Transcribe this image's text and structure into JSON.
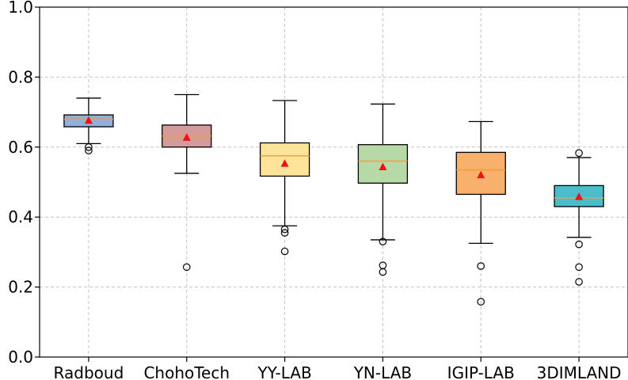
{
  "chart_data": {
    "type": "box",
    "title": "",
    "xlabel": "",
    "ylabel": "",
    "ylim": [
      0.0,
      1.0
    ],
    "yticks": [
      "0.0",
      "0.2",
      "0.4",
      "0.6",
      "0.8",
      "1.0"
    ],
    "grid": true,
    "categories": [
      "Radboud",
      "ChohoTech",
      "YY-LAB",
      "YN-LAB",
      "IGIP-LAB",
      "3DIMLAND"
    ],
    "colors": [
      "#92afd6",
      "#d49b9b",
      "#fde49a",
      "#b7d9a8",
      "#f8b06d",
      "#4bbcca"
    ],
    "median_color": "#f39c3c",
    "mean_color": "#ee1111",
    "boxes": [
      {
        "name": "Radboud",
        "whislo": 0.61,
        "q1": 0.658,
        "med": 0.68,
        "q3": 0.692,
        "whishi": 0.74,
        "mean": 0.676,
        "fliers": [
          0.6,
          0.59
        ]
      },
      {
        "name": "ChohoTech",
        "whislo": 0.525,
        "q1": 0.6,
        "med": 0.632,
        "q3": 0.663,
        "whishi": 0.75,
        "mean": 0.627,
        "fliers": [
          0.257
        ]
      },
      {
        "name": "YY-LAB",
        "whislo": 0.375,
        "q1": 0.517,
        "med": 0.575,
        "q3": 0.612,
        "whishi": 0.733,
        "mean": 0.553,
        "fliers": [
          0.365,
          0.355,
          0.302
        ]
      },
      {
        "name": "YN-LAB",
        "whislo": 0.335,
        "q1": 0.497,
        "med": 0.56,
        "q3": 0.607,
        "whishi": 0.723,
        "mean": 0.543,
        "fliers": [
          0.33,
          0.262,
          0.243
        ]
      },
      {
        "name": "IGIP-LAB",
        "whislo": 0.325,
        "q1": 0.465,
        "med": 0.535,
        "q3": 0.585,
        "whishi": 0.673,
        "mean": 0.52,
        "fliers": [
          0.26,
          0.158
        ]
      },
      {
        "name": "3DIMLAND",
        "whislo": 0.342,
        "q1": 0.43,
        "med": 0.455,
        "q3": 0.49,
        "whishi": 0.57,
        "mean": 0.458,
        "fliers": [
          0.583,
          0.322,
          0.257,
          0.215
        ]
      }
    ]
  }
}
